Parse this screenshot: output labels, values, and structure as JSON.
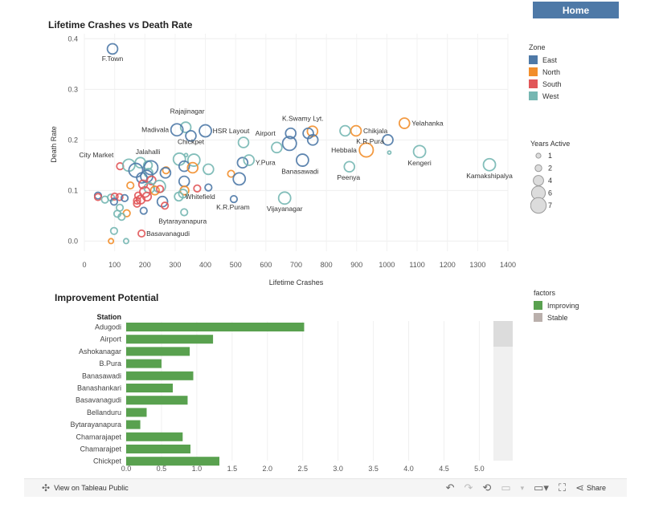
{
  "header": {
    "home_label": "Home"
  },
  "scatter": {
    "title": "Lifetime Crashes vs Death Rate"
  },
  "bar": {
    "title": "Improvement Potential",
    "station_header": "Station"
  },
  "zone_legend": {
    "title": "Zone",
    "items": [
      {
        "label": "East",
        "color": "#4e79a7"
      },
      {
        "label": "North",
        "color": "#f28e2b"
      },
      {
        "label": "South",
        "color": "#e15759"
      },
      {
        "label": "West",
        "color": "#76b7b2"
      }
    ]
  },
  "size_legend": {
    "title": "Years Active",
    "items": [
      "1",
      "2",
      "4",
      "6",
      "7"
    ]
  },
  "factors_legend": {
    "title": "factors",
    "items": [
      {
        "label": "Improving",
        "color": "#59a14f"
      },
      {
        "label": "Stable",
        "color": "#bab0ac"
      }
    ]
  },
  "footer": {
    "view_label": "View on Tableau Public",
    "share_label": "Share"
  },
  "chart_data": [
    {
      "type": "scatter",
      "title": "Lifetime Crashes vs Death Rate",
      "xlabel": "Lifetime Crashes",
      "ylabel": "Death Rate",
      "xlim": [
        0,
        1400
      ],
      "ylim": [
        -0.02,
        0.41
      ],
      "xticks": [
        0,
        100,
        200,
        300,
        400,
        500,
        600,
        700,
        800,
        900,
        1000,
        1100,
        1200,
        1300,
        1400
      ],
      "yticks": [
        0.0,
        0.1,
        0.2,
        0.3,
        0.4
      ],
      "grid": true,
      "legend": "right",
      "points": [
        {
          "label": "F.Town",
          "x": 93,
          "y": 0.38,
          "zone": "East",
          "years": 4
        },
        {
          "label": "Rajajinagar",
          "x": 335,
          "y": 0.225,
          "zone": "West",
          "years": 4
        },
        {
          "label": "Madivala",
          "x": 306,
          "y": 0.22,
          "zone": "East",
          "years": 5
        },
        {
          "label": "HSR Layout",
          "x": 400,
          "y": 0.218,
          "zone": "East",
          "years": 5
        },
        {
          "label": "",
          "x": 352,
          "y": 0.208,
          "zone": "East",
          "years": 4
        },
        {
          "label": "Airport",
          "x": 682,
          "y": 0.213,
          "zone": "East",
          "years": 4
        },
        {
          "label": "K.Swamy Lyt.",
          "x": 754,
          "y": 0.217,
          "zone": "North",
          "years": 4
        },
        {
          "label": "",
          "x": 740,
          "y": 0.213,
          "zone": "East",
          "years": 4
        },
        {
          "label": "",
          "x": 862,
          "y": 0.218,
          "zone": "West",
          "years": 4
        },
        {
          "label": "Chikjala",
          "x": 898,
          "y": 0.218,
          "zone": "North",
          "years": 4
        },
        {
          "label": "Yelahanka",
          "x": 1058,
          "y": 0.233,
          "zone": "North",
          "years": 4
        },
        {
          "label": "",
          "x": 1003,
          "y": 0.2,
          "zone": "East",
          "years": 4
        },
        {
          "label": "",
          "x": 526,
          "y": 0.195,
          "zone": "West",
          "years": 4
        },
        {
          "label": "",
          "x": 678,
          "y": 0.193,
          "zone": "East",
          "years": 6
        },
        {
          "label": "",
          "x": 636,
          "y": 0.185,
          "zone": "West",
          "years": 4
        },
        {
          "label": "",
          "x": 755,
          "y": 0.2,
          "zone": "East",
          "years": 4
        },
        {
          "label": "Hebbala",
          "x": 932,
          "y": 0.18,
          "zone": "North",
          "years": 6
        },
        {
          "label": "Kengeri",
          "x": 1108,
          "y": 0.177,
          "zone": "West",
          "years": 5
        },
        {
          "label": "K.R.Pura",
          "x": 1008,
          "y": 0.175,
          "zone": "West",
          "years": 0
        },
        {
          "label": "Chickpet",
          "x": 336,
          "y": 0.17,
          "zone": "West",
          "years": 0
        },
        {
          "label": "Y.Pura",
          "x": 523,
          "y": 0.155,
          "zone": "East",
          "years": 4
        },
        {
          "label": "",
          "x": 544,
          "y": 0.16,
          "zone": "West",
          "years": 4
        },
        {
          "label": "Banasawadi",
          "x": 721,
          "y": 0.16,
          "zone": "East",
          "years": 5
        },
        {
          "label": "Peenya",
          "x": 876,
          "y": 0.147,
          "zone": "West",
          "years": 4
        },
        {
          "label": "Kamakshipalya",
          "x": 1339,
          "y": 0.151,
          "zone": "West",
          "years": 5
        },
        {
          "label": "City Market",
          "x": 118,
          "y": 0.148,
          "zone": "South",
          "years": 2
        },
        {
          "label": "Jalahalli",
          "x": 210,
          "y": 0.15,
          "zone": "West",
          "years": 3
        },
        {
          "label": "",
          "x": 147,
          "y": 0.15,
          "zone": "West",
          "years": 5
        },
        {
          "label": "",
          "x": 185,
          "y": 0.155,
          "zone": "West",
          "years": 4
        },
        {
          "label": "",
          "x": 220,
          "y": 0.145,
          "zone": "East",
          "years": 6
        },
        {
          "label": "",
          "x": 170,
          "y": 0.14,
          "zone": "East",
          "years": 6
        },
        {
          "label": "",
          "x": 212,
          "y": 0.135,
          "zone": "West",
          "years": 3
        },
        {
          "label": "",
          "x": 206,
          "y": 0.128,
          "zone": "East",
          "years": 5
        },
        {
          "label": "",
          "x": 270,
          "y": 0.14,
          "zone": "North",
          "years": 2
        },
        {
          "label": "",
          "x": 268,
          "y": 0.135,
          "zone": "East",
          "years": 4
        },
        {
          "label": "",
          "x": 314,
          "y": 0.162,
          "zone": "West",
          "years": 5
        },
        {
          "label": "",
          "x": 362,
          "y": 0.16,
          "zone": "West",
          "years": 5
        },
        {
          "label": "",
          "x": 330,
          "y": 0.148,
          "zone": "East",
          "years": 4
        },
        {
          "label": "",
          "x": 358,
          "y": 0.145,
          "zone": "North",
          "years": 4
        },
        {
          "label": "",
          "x": 410,
          "y": 0.142,
          "zone": "West",
          "years": 4
        },
        {
          "label": "",
          "x": 485,
          "y": 0.133,
          "zone": "North",
          "years": 2
        },
        {
          "label": "",
          "x": 512,
          "y": 0.123,
          "zone": "East",
          "years": 5
        },
        {
          "label": "",
          "x": 190,
          "y": 0.125,
          "zone": "East",
          "years": 4
        },
        {
          "label": "",
          "x": 222,
          "y": 0.12,
          "zone": "South",
          "years": 3
        },
        {
          "label": "",
          "x": 330,
          "y": 0.118,
          "zone": "East",
          "years": 4
        },
        {
          "label": "",
          "x": 152,
          "y": 0.11,
          "zone": "North",
          "years": 2
        },
        {
          "label": "",
          "x": 194,
          "y": 0.112,
          "zone": "South",
          "years": 3
        },
        {
          "label": "",
          "x": 215,
          "y": 0.105,
          "zone": "West",
          "years": 4
        },
        {
          "label": "",
          "x": 248,
          "y": 0.108,
          "zone": "West",
          "years": 5
        },
        {
          "label": "",
          "x": 233,
          "y": 0.1,
          "zone": "North",
          "years": 3
        },
        {
          "label": "",
          "x": 200,
          "y": 0.097,
          "zone": "South",
          "years": 4
        },
        {
          "label": "",
          "x": 250,
          "y": 0.103,
          "zone": "South",
          "years": 2
        },
        {
          "label": "",
          "x": 373,
          "y": 0.104,
          "zone": "South",
          "years": 2
        },
        {
          "label": "",
          "x": 410,
          "y": 0.106,
          "zone": "East",
          "years": 2
        },
        {
          "label": "",
          "x": 331,
          "y": 0.1,
          "zone": "North",
          "years": 3
        },
        {
          "label": "",
          "x": 326,
          "y": 0.094,
          "zone": "West",
          "years": 3
        },
        {
          "label": "Whitefield",
          "x": 312,
          "y": 0.088,
          "zone": "West",
          "years": 3
        },
        {
          "label": "",
          "x": 178,
          "y": 0.09,
          "zone": "South",
          "years": 2
        },
        {
          "label": "",
          "x": 186,
          "y": 0.082,
          "zone": "South",
          "years": 3
        },
        {
          "label": "",
          "x": 207,
          "y": 0.088,
          "zone": "South",
          "years": 3
        },
        {
          "label": "",
          "x": 45,
          "y": 0.09,
          "zone": "East",
          "years": 2
        },
        {
          "label": "",
          "x": 45,
          "y": 0.087,
          "zone": "South",
          "years": 2
        },
        {
          "label": "",
          "x": 88,
          "y": 0.086,
          "zone": "West",
          "years": 2
        },
        {
          "label": "",
          "x": 68,
          "y": 0.082,
          "zone": "West",
          "years": 2
        },
        {
          "label": "",
          "x": 100,
          "y": 0.088,
          "zone": "South",
          "years": 2
        },
        {
          "label": "",
          "x": 116,
          "y": 0.087,
          "zone": "South",
          "years": 2
        },
        {
          "label": "",
          "x": 133,
          "y": 0.085,
          "zone": "East",
          "years": 2
        },
        {
          "label": "",
          "x": 98,
          "y": 0.078,
          "zone": "East",
          "years": 2
        },
        {
          "label": "",
          "x": 174,
          "y": 0.08,
          "zone": "South",
          "years": 2
        },
        {
          "label": "",
          "x": 174,
          "y": 0.074,
          "zone": "South",
          "years": 2
        },
        {
          "label": "",
          "x": 258,
          "y": 0.078,
          "zone": "East",
          "years": 4
        },
        {
          "label": "K.R.Puram",
          "x": 494,
          "y": 0.083,
          "zone": "East",
          "years": 2
        },
        {
          "label": "Vijayanagar",
          "x": 662,
          "y": 0.085,
          "zone": "West",
          "years": 5
        },
        {
          "label": "",
          "x": 117,
          "y": 0.066,
          "zone": "West",
          "years": 2
        },
        {
          "label": "",
          "x": 266,
          "y": 0.07,
          "zone": "South",
          "years": 2
        },
        {
          "label": "",
          "x": 196,
          "y": 0.06,
          "zone": "East",
          "years": 2
        },
        {
          "label": "",
          "x": 140,
          "y": 0.055,
          "zone": "North",
          "years": 2
        },
        {
          "label": "",
          "x": 109,
          "y": 0.054,
          "zone": "West",
          "years": 2
        },
        {
          "label": "",
          "x": 123,
          "y": 0.048,
          "zone": "West",
          "years": 2
        },
        {
          "label": "Bytarayanapura",
          "x": 330,
          "y": 0.057,
          "zone": "West",
          "years": 2
        },
        {
          "label": "",
          "x": 98,
          "y": 0.02,
          "zone": "West",
          "years": 2
        },
        {
          "label": "Basavanagudi",
          "x": 189,
          "y": 0.015,
          "zone": "South",
          "years": 2
        },
        {
          "label": "",
          "x": 88,
          "y": 0.0,
          "zone": "North",
          "years": 1
        },
        {
          "label": "",
          "x": 138,
          "y": 0.0,
          "zone": "West",
          "years": 1
        }
      ]
    },
    {
      "type": "bar",
      "orientation": "horizontal",
      "title": "Improvement Potential",
      "xlabel": "",
      "ylabel": "Station",
      "xlim": [
        0,
        5.2
      ],
      "xticks": [
        "0.0",
        "0.5",
        "1.0",
        "1.5",
        "2.0",
        "2.5",
        "3.0",
        "3.5",
        "4.0",
        "4.5",
        "5.0"
      ],
      "legend": "right",
      "categories": [
        "Adugodi",
        "Airport",
        "Ashokanagar",
        "B.Pura",
        "Banasawadi",
        "Banashankari",
        "Basavanagudi",
        "Bellanduru",
        "Bytarayanapura",
        "Chamarajapet",
        "Chamarajpet",
        "Chickpet"
      ],
      "series": [
        {
          "name": "Improving",
          "values": [
            2.52,
            1.23,
            0.9,
            0.5,
            0.95,
            0.66,
            0.87,
            0.29,
            0.2,
            0.8,
            0.91,
            1.32
          ]
        }
      ]
    }
  ]
}
